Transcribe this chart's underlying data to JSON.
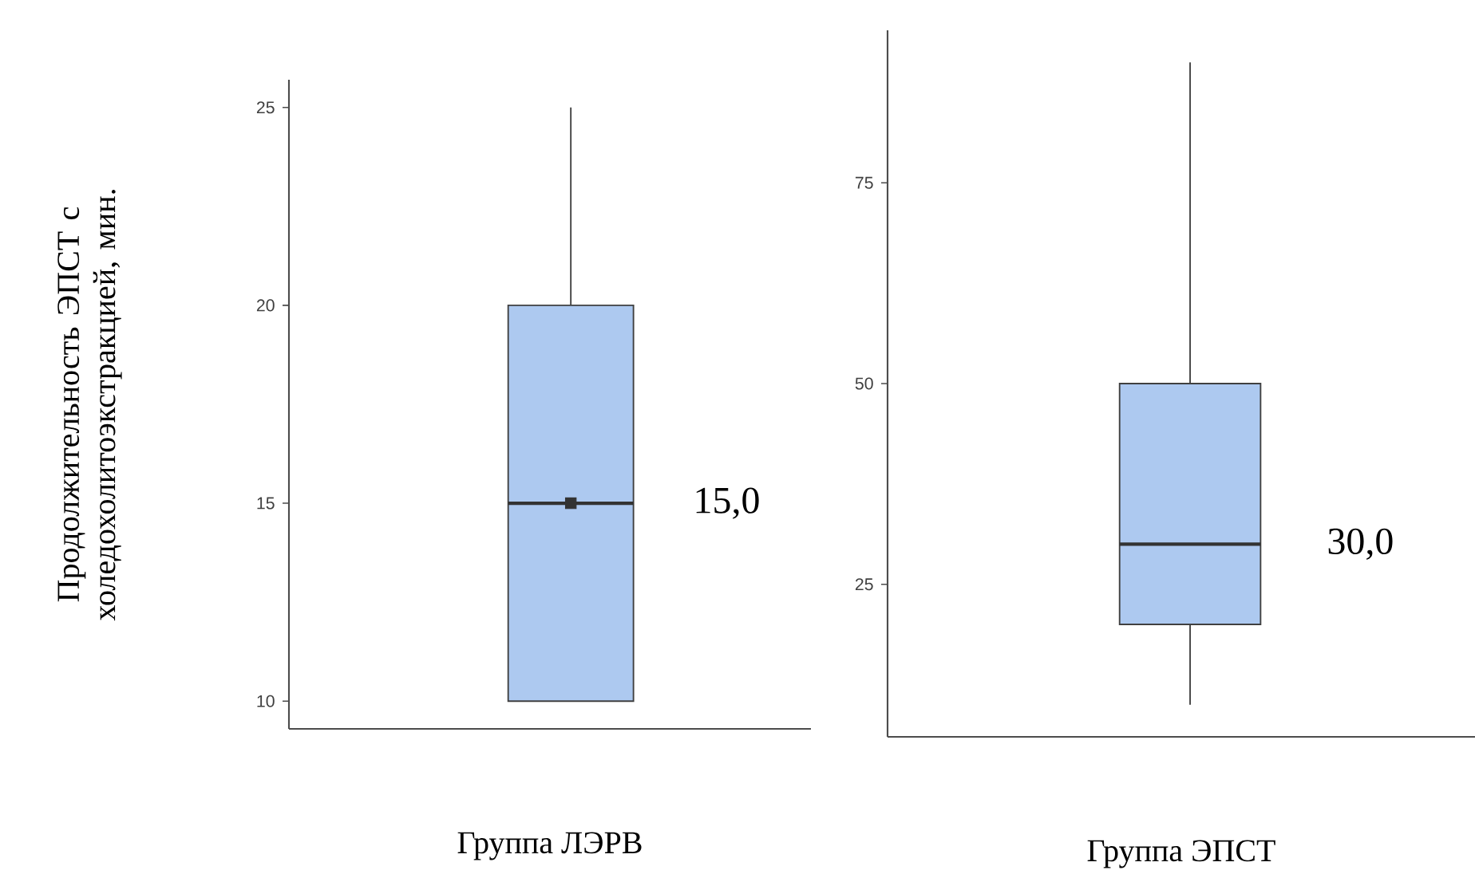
{
  "chart_data": [
    {
      "type": "box",
      "ylabel": "Продолжительность ЭПСТ с холедохолитоэкстракцией, мин.",
      "xlabel": "Группа ЛЭРВ",
      "categories": [
        null
      ],
      "color": "#adc9f0",
      "ylim": [
        9.3,
        25.7
      ],
      "yticks": [
        10,
        15,
        20,
        25
      ],
      "grid": false,
      "boxes": [
        {
          "low": 10,
          "q1": 10,
          "median": 15,
          "q3": 20,
          "high": 25,
          "mean": 15
        }
      ],
      "annotations": [
        "15,0"
      ]
    },
    {
      "type": "box",
      "xlabel": "Группа ЭПСТ",
      "categories": [
        null
      ],
      "color": "#adc9f0",
      "ylim": [
        6,
        94
      ],
      "yticks": [
        25,
        50,
        75
      ],
      "grid": false,
      "boxes": [
        {
          "low": 10,
          "q1": 20,
          "median": 30,
          "q3": 50,
          "high": 90
        }
      ],
      "annotations": [
        "30,0"
      ]
    }
  ]
}
